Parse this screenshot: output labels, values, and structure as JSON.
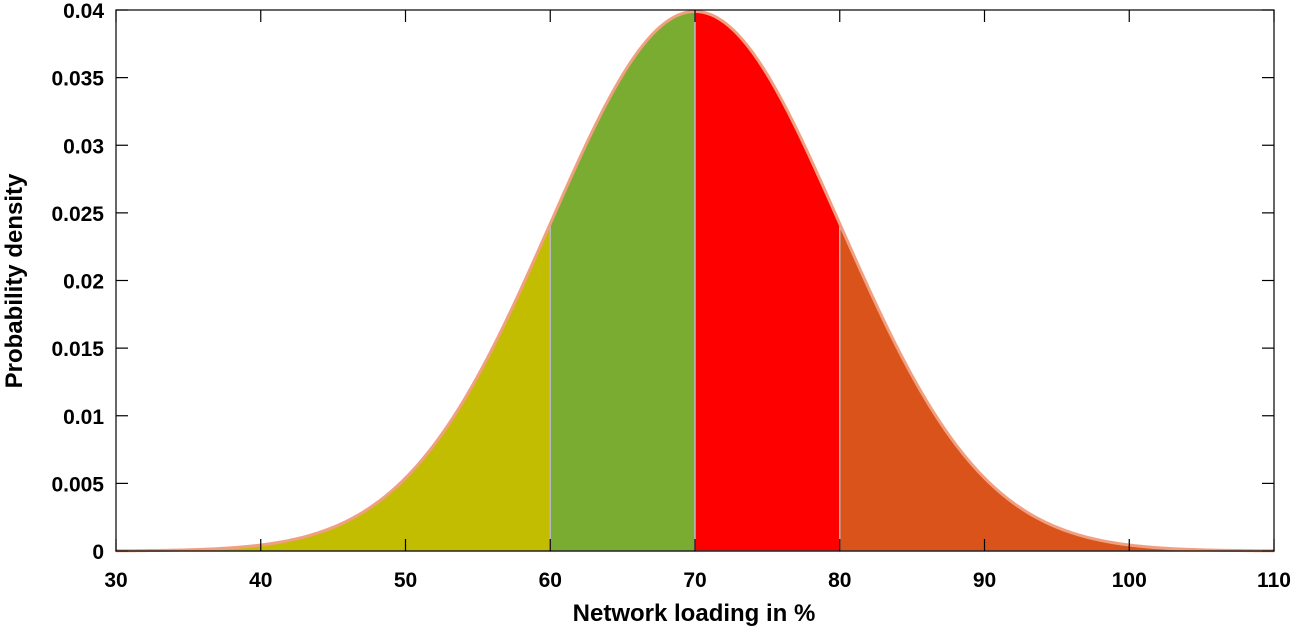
{
  "chart_data": {
    "type": "area",
    "title": "",
    "xlabel": "Network loading in %",
    "ylabel": "Probability density",
    "xlim": [
      30,
      110
    ],
    "ylim": [
      0,
      0.04
    ],
    "xticks": [
      30,
      40,
      50,
      60,
      70,
      80,
      90,
      100,
      110
    ],
    "xtick_labels": [
      "30",
      "40",
      "50",
      "60",
      "70",
      "80",
      "90",
      "100",
      "110"
    ],
    "yticks": [
      0,
      0.005,
      0.01,
      0.015,
      0.02,
      0.025,
      0.03,
      0.035,
      0.04
    ],
    "ytick_labels": [
      "0",
      "0.005",
      "0.01",
      "0.015",
      "0.02",
      "0.025",
      "0.03",
      "0.035",
      "0.04"
    ],
    "grid": false,
    "distribution": {
      "kind": "normal",
      "mean": 70,
      "std": 10
    },
    "series": [
      {
        "x_range": [
          30,
          60
        ],
        "color": "#c2bd00"
      },
      {
        "x_range": [
          60,
          70
        ],
        "color": "#7aac32"
      },
      {
        "x_range": [
          70,
          80
        ],
        "color": "#ff0000"
      },
      {
        "x_range": [
          80,
          110
        ],
        "color": "#d9531a"
      }
    ],
    "curve_color": "#f0a080"
  }
}
